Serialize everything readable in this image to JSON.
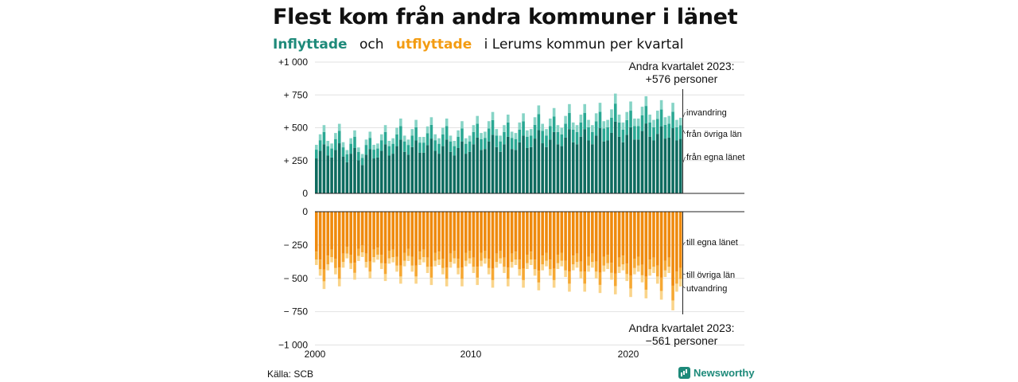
{
  "title": "Flest kom från andra kommuner i länet",
  "subtitle": {
    "in_label": "Inflyttade",
    "connector": "och",
    "out_label": "utflyttade",
    "rest": "i Lerums kommun per kvartal"
  },
  "source": "Källa: SCB",
  "brand": "Newsworthy",
  "colors": {
    "in_own_county": "#0e6b5f",
    "in_other_counties": "#2aa893",
    "in_immigration": "#86d4c6",
    "out_own_county": "#ef8a0d",
    "out_other_counties": "#f6a833",
    "out_emigration": "#fad48a"
  },
  "chart_data": {
    "type": "bar",
    "stacked": true,
    "grid": true,
    "x_axis": {
      "tick_labels": [
        "2000",
        "2010",
        "2020"
      ],
      "range": [
        2000,
        2023.5
      ]
    },
    "y_axis": {
      "tick_labels_top": [
        "+1 000",
        "+  750",
        "+  500",
        "+  250",
        "0"
      ],
      "tick_labels_bottom": [
        "0",
        "−  250",
        "−  500",
        "−  750",
        "−1 000"
      ],
      "range": [
        -1000,
        1000
      ]
    },
    "annotations": {
      "top": [
        "Andra kvartalet 2023:",
        "+576 personer"
      ],
      "bottom": [
        "Andra kvartalet 2023:",
        "−561 personer"
      ]
    },
    "series_labels": {
      "invandring": "invandring",
      "fran_ovriga_lan": "från övriga län",
      "fran_egna_lanet": "från egna länet",
      "till_egna_lanet": "till egna länet",
      "till_ovriga_lan": "till övriga län",
      "utvandring": "utvandring"
    },
    "quarters_start": "2000 Q1",
    "quarters_end": "2023 Q2",
    "inflow_totals": [
      370,
      450,
      520,
      400,
      380,
      460,
      530,
      390,
      330,
      420,
      480,
      350,
      300,
      410,
      470,
      370,
      380,
      450,
      520,
      400,
      420,
      500,
      570,
      440,
      410,
      490,
      560,
      430,
      430,
      510,
      580,
      450,
      420,
      500,
      570,
      440,
      400,
      480,
      550,
      420,
      440,
      520,
      590,
      460,
      470,
      550,
      620,
      490,
      440,
      520,
      600,
      470,
      460,
      540,
      610,
      480,
      490,
      580,
      670,
      530,
      490,
      570,
      650,
      520,
      500,
      590,
      680,
      540,
      520,
      600,
      680,
      560,
      520,
      610,
      690,
      550,
      560,
      640,
      760,
      600,
      540,
      620,
      700,
      570,
      570,
      660,
      740,
      600,
      560,
      630,
      710,
      580,
      590,
      690,
      560,
      576
    ],
    "outflow_totals": [
      -400,
      -480,
      -580,
      -440,
      -380,
      -470,
      -560,
      -420,
      -350,
      -430,
      -510,
      -370,
      -340,
      -420,
      -500,
      -380,
      -360,
      -430,
      -520,
      -390,
      -380,
      -450,
      -540,
      -410,
      -370,
      -450,
      -540,
      -400,
      -380,
      -460,
      -550,
      -410,
      -400,
      -470,
      -560,
      -420,
      -390,
      -470,
      -560,
      -410,
      -390,
      -460,
      -550,
      -410,
      -390,
      -470,
      -570,
      -420,
      -390,
      -460,
      -560,
      -420,
      -400,
      -480,
      -570,
      -430,
      -400,
      -480,
      -590,
      -440,
      -410,
      -480,
      -570,
      -430,
      -410,
      -490,
      -600,
      -440,
      -420,
      -500,
      -600,
      -450,
      -420,
      -500,
      -610,
      -450,
      -430,
      -510,
      -620,
      -460,
      -440,
      -520,
      -640,
      -470,
      -450,
      -530,
      -650,
      -480,
      -460,
      -540,
      -660,
      -490,
      -460,
      -740,
      -600,
      -561
    ],
    "inflow_shares": {
      "fran_egna_lanet": 0.72,
      "fran_ovriga_lan": 0.18,
      "invandring": 0.1
    },
    "outflow_shares": {
      "till_egna_lanet": 0.75,
      "till_ovriga_lan": 0.15,
      "utvandring": 0.1
    }
  }
}
